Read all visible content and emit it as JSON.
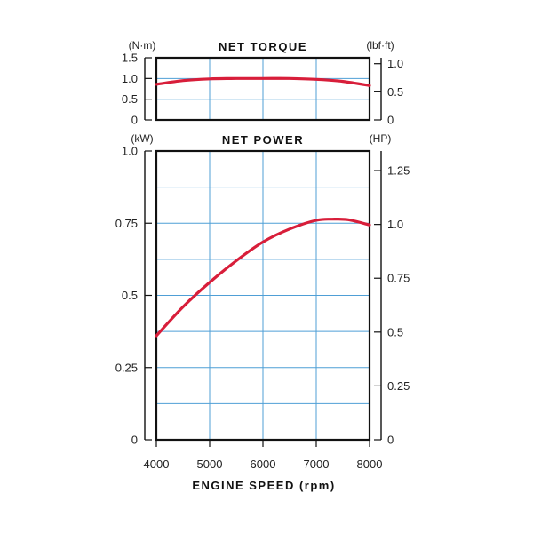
{
  "chart_data": [
    {
      "type": "line",
      "title": "NET TORQUE",
      "left_unit": "(N·m)",
      "right_unit": "(lbf·ft)",
      "left_ticks": [
        "0",
        "0.5",
        "1.0",
        "1.5"
      ],
      "left_tick_values": [
        0,
        0.5,
        1.0,
        1.5
      ],
      "right_ticks": [
        "0",
        "0.5",
        "1.0"
      ],
      "right_tick_values": [
        0,
        0.5,
        1.0
      ],
      "ylim": [
        0,
        1.5
      ],
      "right_ylim": [
        0,
        1.106
      ],
      "grid": true,
      "series": [
        {
          "color": "#d81e3a",
          "x": [
            4000,
            4500,
            5000,
            5500,
            6000,
            6500,
            7000,
            7500,
            8000
          ],
          "y": [
            0.86,
            0.95,
            0.99,
            1.0,
            1.0,
            1.0,
            0.98,
            0.93,
            0.83
          ]
        }
      ]
    },
    {
      "type": "line",
      "title": "NET POWER",
      "left_unit": "(kW)",
      "right_unit": "(HP)",
      "left_ticks": [
        "0",
        "0.25",
        "0.5",
        "0.75",
        "1.0"
      ],
      "left_tick_values": [
        0,
        0.25,
        0.5,
        0.75,
        1.0
      ],
      "right_ticks": [
        "0",
        "0.25",
        "0.5",
        "0.75",
        "1.0",
        "1.25"
      ],
      "right_tick_values": [
        0,
        0.25,
        0.5,
        0.75,
        1.0,
        1.25
      ],
      "ylim": [
        0,
        1.0
      ],
      "right_ylim": [
        0,
        1.341
      ],
      "grid": true,
      "series": [
        {
          "color": "#d81e3a",
          "x": [
            4000,
            4500,
            5000,
            5500,
            6000,
            6500,
            7000,
            7300,
            7600,
            8000
          ],
          "y": [
            0.36,
            0.46,
            0.545,
            0.62,
            0.685,
            0.73,
            0.76,
            0.764,
            0.762,
            0.744
          ]
        }
      ]
    }
  ],
  "x_axis": {
    "label": "ENGINE SPEED (rpm)",
    "ticks": [
      "4000",
      "5000",
      "6000",
      "7000",
      "8000"
    ],
    "tick_values": [
      4000,
      5000,
      6000,
      7000,
      8000
    ],
    "xlim": [
      4000,
      8000
    ]
  }
}
